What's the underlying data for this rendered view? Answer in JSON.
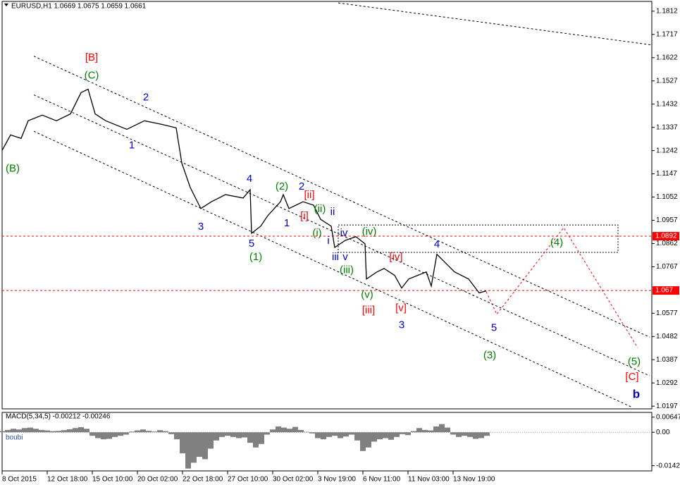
{
  "chart_data": [
    {
      "type": "line",
      "title": "EURUSD,H1 1.0669 1.0675 1.0659 1.0661",
      "x": [
        0,
        6,
        13.5,
        18.5,
        28.5,
        38.5,
        48.5,
        56,
        61,
        66,
        73.5,
        88.5,
        101,
        113.5,
        123.5,
        127.5,
        133.5,
        141,
        148.5,
        158.5,
        171,
        176,
        177,
        183.5,
        188.5,
        197.5,
        199.5,
        203.5,
        213.5,
        221,
        226,
        233.5,
        236,
        243.5,
        251,
        257.5,
        258.5,
        266,
        271,
        278.5,
        283.5,
        288.5,
        301,
        304.5,
        308.5,
        313.5,
        321,
        331,
        338.5,
        343.5
      ],
      "values": [
        1.1243,
        1.1306,
        1.1292,
        1.1364,
        1.1387,
        1.1364,
        1.1392,
        1.1479,
        1.1493,
        1.1392,
        1.1364,
        1.1329,
        1.1364,
        1.1349,
        1.1335,
        1.1191,
        1.1091,
        1.1005,
        1.1033,
        1.1062,
        1.1048,
        1.1082,
        1.0904,
        1.0933,
        1.0976,
        1.1033,
        1.1062,
        1.1005,
        1.1033,
        1.1019,
        1.0961,
        1.0933,
        1.0846,
        1.0875,
        1.089,
        1.0861,
        1.0717,
        1.0746,
        1.076,
        1.0732,
        1.068,
        1.0717,
        1.0746,
        1.0688,
        1.0818,
        1.0789,
        1.0746,
        1.0717,
        1.066,
        1.0668
      ],
      "color": "#000000",
      "xlim": [
        0,
        461
      ],
      "ylim": [
        1.0186,
        1.1852
      ],
      "xticks": [
        {
          "value": 0,
          "label": "8 Oct 2015"
        },
        {
          "value": 32,
          "label": "12 Oct 18:00"
        },
        {
          "value": 64,
          "label": "15 Oct 10:00"
        },
        {
          "value": 96,
          "label": "20 Oct 02:00"
        },
        {
          "value": 128,
          "label": "22 Oct 18:00"
        },
        {
          "value": 160,
          "label": "27 Oct 10:00"
        },
        {
          "value": 192,
          "label": "30 Oct 02:00"
        },
        {
          "value": 224,
          "label": "3 Nov 19:00"
        },
        {
          "value": 256,
          "label": "6 Nov 11:00"
        },
        {
          "value": 288,
          "label": "11 Nov 03:00"
        },
        {
          "value": 320,
          "label": "13 Nov 19:00"
        }
      ],
      "yticks": [
        1.1812,
        1.1717,
        1.1622,
        1.1527,
        1.1432,
        1.1337,
        1.1242,
        1.1147,
        1.1052,
        1.0957,
        1.0862,
        1.0767,
        1.0577,
        1.0482,
        1.0387,
        1.0292,
        1.0197
      ],
      "price_levels": [
        {
          "value": 1.0892,
          "color": "#ff0000"
        },
        {
          "value": 1.067,
          "color": "#ff0000"
        }
      ],
      "trend_lines": [
        {
          "x": [
            22.5,
            459.5
          ],
          "y": [
            1.1628,
            1.0479
          ],
          "color": "#000000"
        },
        {
          "x": [
            22.5,
            459.5
          ],
          "y": [
            1.147,
            1.0321
          ],
          "color": "#000000"
        },
        {
          "x": [
            22.5,
            447.5
          ],
          "y": [
            1.1321,
            1.0191
          ],
          "color": "#000000"
        },
        {
          "x": [
            238.5,
            461
          ],
          "y": [
            1.1846,
            1.1674
          ],
          "color": "#000000"
        }
      ],
      "projection": {
        "x": [
          343.5,
          351,
          398.5,
          451
        ],
        "y": [
          1.0665,
          1.0573,
          1.0927,
          1.0436
        ],
        "color": "#ff0000"
      },
      "box": {
        "x": [
          238.5,
          437
        ],
        "y": [
          1.0938,
          1.0826
        ]
      },
      "annotations": [
        {
          "text": "[B]",
          "color": "#ff0000",
          "x": 63.5,
          "y": 1.1622
        },
        {
          "text": "(C)",
          "color": "#008000",
          "x": 63.5,
          "y": 1.1548
        },
        {
          "text": "2",
          "color": "#0000cc",
          "x": 102,
          "y": 1.1459
        },
        {
          "text": "1",
          "color": "#0000cc",
          "x": 92,
          "y": 1.1263
        },
        {
          "text": "(B)",
          "color": "#008000",
          "x": 7.5,
          "y": 1.1168
        },
        {
          "text": "4",
          "color": "#0000cc",
          "x": 175.5,
          "y": 1.1125
        },
        {
          "text": "3",
          "color": "#0000cc",
          "x": 141,
          "y": 1.093
        },
        {
          "text": "5",
          "color": "#0000cc",
          "x": 177,
          "y": 1.0861
        },
        {
          "text": "(1)",
          "color": "#008000",
          "x": 180,
          "y": 1.0806
        },
        {
          "text": "(2)",
          "color": "#008000",
          "x": 198.5,
          "y": 1.1094
        },
        {
          "text": "2",
          "color": "#0000cc",
          "x": 212.5,
          "y": 1.1094
        },
        {
          "text": "[ii]",
          "color": "#ff0000",
          "x": 218,
          "y": 1.1059
        },
        {
          "text": "[i]",
          "color": "#ff0000",
          "x": 214.5,
          "y": 1.0973
        },
        {
          "text": "1",
          "color": "#0000cc",
          "x": 202,
          "y": 1.0944
        },
        {
          "text": "(ii)",
          "color": "#008000",
          "x": 225.5,
          "y": 1.1001
        },
        {
          "text": "ii",
          "color": "#0000cc",
          "x": 234.5,
          "y": 1.099
        },
        {
          "text": "(i)",
          "color": "#008000",
          "x": 223.5,
          "y": 1.0904
        },
        {
          "text": "iv",
          "color": "#0000cc",
          "x": 242.5,
          "y": 1.0904
        },
        {
          "text": "(iv)",
          "color": "#008000",
          "x": 260.5,
          "y": 1.091
        },
        {
          "text": "i",
          "color": "#0000cc",
          "x": 231.5,
          "y": 1.0872
        },
        {
          "text": "iii",
          "color": "#0000cc",
          "x": 236.5,
          "y": 1.0806
        },
        {
          "text": "v",
          "color": "#0000cc",
          "x": 243.5,
          "y": 1.0806
        },
        {
          "text": "(iii)",
          "color": "#008000",
          "x": 244.5,
          "y": 1.0752
        },
        {
          "text": "[iv]",
          "color": "#ff0000",
          "x": 279.5,
          "y": 1.0806
        },
        {
          "text": "4",
          "color": "#0000cc",
          "x": 308.5,
          "y": 1.0858
        },
        {
          "text": "(v)",
          "color": "#008000",
          "x": 259,
          "y": 1.0651
        },
        {
          "text": "[iii]",
          "color": "#ff0000",
          "x": 260,
          "y": 1.0588
        },
        {
          "text": "[v]",
          "color": "#ff0000",
          "x": 283,
          "y": 1.0596
        },
        {
          "text": "3",
          "color": "#0000cc",
          "x": 283.5,
          "y": 1.0527
        },
        {
          "text": "5",
          "color": "#0000cc",
          "x": 349,
          "y": 1.0516
        },
        {
          "text": "(3)",
          "color": "#008000",
          "x": 346,
          "y": 1.0404
        },
        {
          "text": "(4)",
          "color": "#008000",
          "x": 393.5,
          "y": 1.0864
        },
        {
          "text": "(5)",
          "color": "#008000",
          "x": 448.5,
          "y": 1.0378
        },
        {
          "text": "[C]",
          "color": "#ff0000",
          "x": 447,
          "y": 1.0315
        },
        {
          "text": "b",
          "color": "#0000cc",
          "x": 450,
          "y": 1.0243,
          "bold": true
        }
      ]
    },
    {
      "type": "bar",
      "title": "MACD(5,34,5) -0.00212 -0.00246",
      "label": "boubi",
      "x": [
        0,
        4,
        8,
        12,
        16,
        20,
        24,
        28,
        32,
        36,
        40,
        44,
        48,
        52,
        56,
        60,
        64,
        68,
        72,
        76,
        80,
        84,
        88,
        92,
        96,
        100,
        104,
        108,
        112,
        116,
        120,
        124,
        128,
        132,
        136,
        140,
        144,
        148,
        152,
        156,
        160,
        164,
        168,
        172,
        176,
        180,
        184,
        188,
        192,
        196,
        200,
        204,
        208,
        212,
        216,
        220,
        224,
        228,
        232,
        236,
        240,
        244,
        248,
        252,
        256,
        260,
        264,
        268,
        272,
        276,
        280,
        284,
        288,
        292,
        296,
        300,
        304,
        308,
        312,
        316,
        320,
        324,
        328,
        332,
        336,
        340,
        344
      ],
      "values": [
        0.0005,
        0.001,
        0.0015,
        0.0012,
        0.0018,
        0.002,
        0.0015,
        0.001,
        0.0008,
        0.0005,
        0.0006,
        0.0009,
        0.0013,
        0.0018,
        0.0022,
        0.0015,
        -0.0015,
        -0.0025,
        -0.003,
        -0.0028,
        -0.002,
        -0.0015,
        -0.001,
        0.0003,
        0.0008,
        0.0012,
        0.0006,
        0.0003,
        0.0009,
        0.0005,
        -0.0008,
        -0.003,
        -0.009,
        -0.0155,
        -0.013,
        -0.0105,
        -0.0115,
        -0.007,
        -0.0035,
        -0.002,
        -0.0015,
        -0.002,
        -0.0025,
        -0.0022,
        -0.0045,
        -0.0065,
        -0.005,
        -0.001,
        0.0012,
        0.0025,
        0.002,
        0.0015,
        0.0023,
        0.001,
        0.0002,
        -0.0005,
        -0.0025,
        -0.003,
        -0.002,
        -0.0015,
        -0.0025,
        -0.0018,
        -0.001,
        -0.0035,
        -0.008,
        -0.0065,
        -0.004,
        -0.003,
        -0.0025,
        -0.0032,
        -0.002,
        -0.0008,
        -0.0012,
        0.0005,
        0.0018,
        0.001,
        0.0008,
        0.0025,
        0.0035,
        0.002,
        -0.001,
        -0.002,
        -0.0015,
        -0.002,
        -0.0028,
        -0.0025,
        -0.0015
      ],
      "color": "#808080",
      "xlim": [
        0,
        461
      ],
      "ylim": [
        -0.0165,
        0.0085
      ],
      "yticks": [
        0.00647,
        {
          "value": 0,
          "label": "0.00"
        },
        -0.01428
      ]
    }
  ]
}
